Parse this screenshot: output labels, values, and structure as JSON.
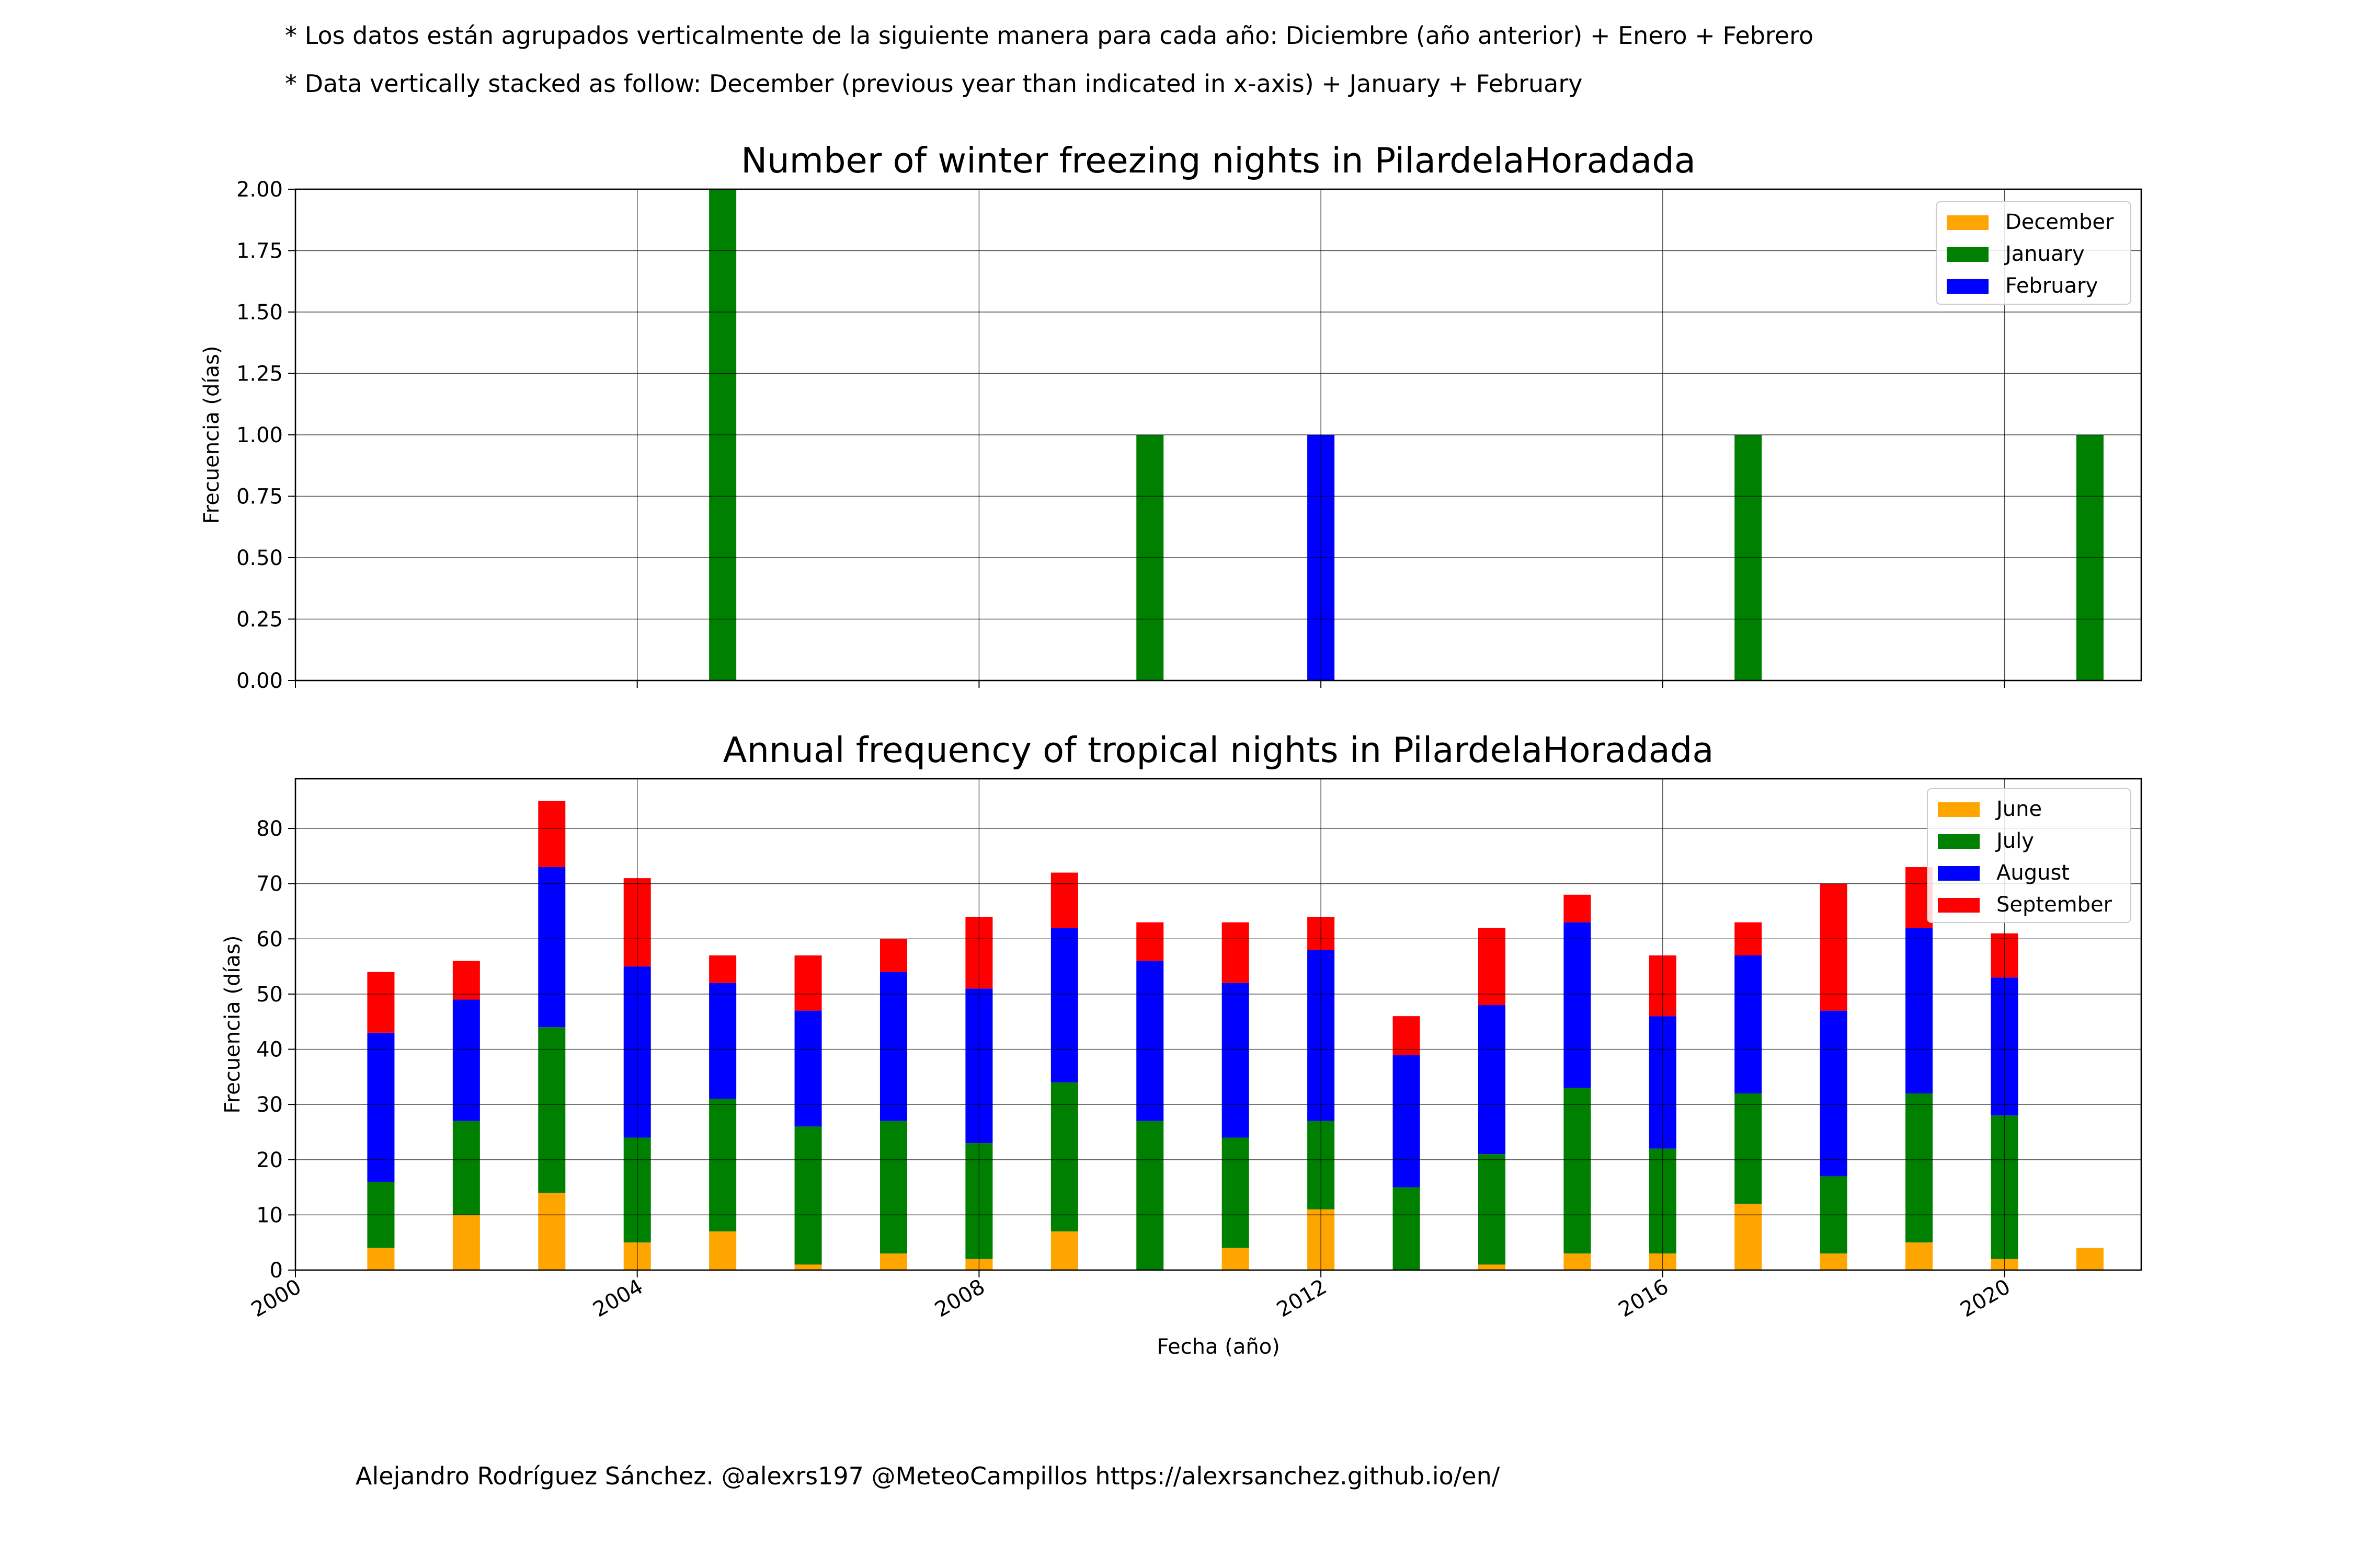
{
  "notes": {
    "line1": "* Los datos están agrupados verticalmente de la siguiente manera para cada año: Diciembre (año anterior) + Enero  + Febrero",
    "line2": "* Data vertically stacked as follow: December (previous year than indicated in x-axis) + January  + February"
  },
  "footer": "Alejandro Rodríguez Sánchez. @alexrs197 @MeteoCampillos   https://alexrsanchez.github.io/en/",
  "chart_data": [
    {
      "type": "bar",
      "stacked": true,
      "title": "Number of winter freezing nights in PilardelaHoradada",
      "ylabel": "Frecuencia (días)",
      "xlabel": "",
      "x": [
        2001,
        2002,
        2003,
        2004,
        2005,
        2006,
        2007,
        2008,
        2009,
        2010,
        2011,
        2012,
        2013,
        2014,
        2015,
        2016,
        2017,
        2018,
        2019,
        2020,
        2021
      ],
      "series": [
        {
          "name": "December",
          "color": "#ffa500",
          "values": [
            0,
            0,
            0,
            0,
            0,
            0,
            0,
            0,
            0,
            0,
            0,
            0,
            0,
            0,
            0,
            0,
            0,
            0,
            0,
            0,
            0
          ]
        },
        {
          "name": "January",
          "color": "#008000",
          "values": [
            0,
            0,
            0,
            0,
            2,
            0,
            0,
            0,
            0,
            1,
            0,
            0,
            0,
            0,
            0,
            0,
            1,
            0,
            0,
            0,
            1
          ]
        },
        {
          "name": "February",
          "color": "#0000ff",
          "values": [
            0,
            0,
            0,
            0,
            0,
            0,
            0,
            0,
            0,
            0,
            0,
            1,
            0,
            0,
            0,
            0,
            0,
            0,
            0,
            0,
            0
          ]
        }
      ],
      "xlim": [
        2000,
        2021.6
      ],
      "ylim": [
        0,
        2
      ],
      "xticks": [
        2000,
        2004,
        2008,
        2012,
        2016,
        2020
      ],
      "xtick_labels_visible": false,
      "yticks": [
        0,
        0.25,
        0.5,
        0.75,
        1,
        1.25,
        1.5,
        1.75,
        2
      ],
      "ytick_labels": [
        "0.00",
        "0.25",
        "0.50",
        "0.75",
        "1.00",
        "1.25",
        "1.50",
        "1.75",
        "2.00"
      ],
      "grid": true,
      "legend": "top-right"
    },
    {
      "type": "bar",
      "stacked": true,
      "title": "Annual frequency of tropical nights in PilardelaHoradada",
      "ylabel": "Frecuencia (días)",
      "xlabel": "Fecha (año)",
      "x": [
        2001,
        2002,
        2003,
        2004,
        2005,
        2006,
        2007,
        2008,
        2009,
        2010,
        2011,
        2012,
        2013,
        2014,
        2015,
        2016,
        2017,
        2018,
        2019,
        2020,
        2021
      ],
      "series": [
        {
          "name": "June",
          "color": "#ffa500",
          "values": [
            4,
            10,
            14,
            5,
            7,
            1,
            3,
            2,
            7,
            0,
            4,
            11,
            0,
            1,
            3,
            3,
            12,
            3,
            5,
            2,
            4
          ]
        },
        {
          "name": "July",
          "color": "#008000",
          "values": [
            12,
            17,
            30,
            19,
            24,
            25,
            24,
            21,
            27,
            27,
            20,
            16,
            15,
            20,
            30,
            19,
            20,
            14,
            27,
            26,
            0
          ]
        },
        {
          "name": "August",
          "color": "#0000ff",
          "values": [
            27,
            22,
            29,
            31,
            21,
            21,
            27,
            28,
            28,
            29,
            28,
            31,
            24,
            27,
            30,
            24,
            25,
            30,
            30,
            25,
            0
          ]
        },
        {
          "name": "September",
          "color": "#ff0000",
          "values": [
            11,
            7,
            12,
            16,
            5,
            10,
            6,
            13,
            10,
            7,
            11,
            6,
            7,
            14,
            5,
            11,
            6,
            23,
            11,
            8,
            0
          ]
        }
      ],
      "xlim": [
        2000,
        2021.6
      ],
      "ylim": [
        0,
        89
      ],
      "xticks": [
        2000,
        2004,
        2008,
        2012,
        2016,
        2020
      ],
      "xtick_labels": [
        "2000",
        "2004",
        "2008",
        "2012",
        "2016",
        "2020"
      ],
      "yticks": [
        0,
        10,
        20,
        30,
        40,
        50,
        60,
        70,
        80
      ],
      "ytick_labels": [
        "0",
        "10",
        "20",
        "30",
        "40",
        "50",
        "60",
        "70",
        "80"
      ],
      "grid": true,
      "legend": "top-right"
    }
  ]
}
